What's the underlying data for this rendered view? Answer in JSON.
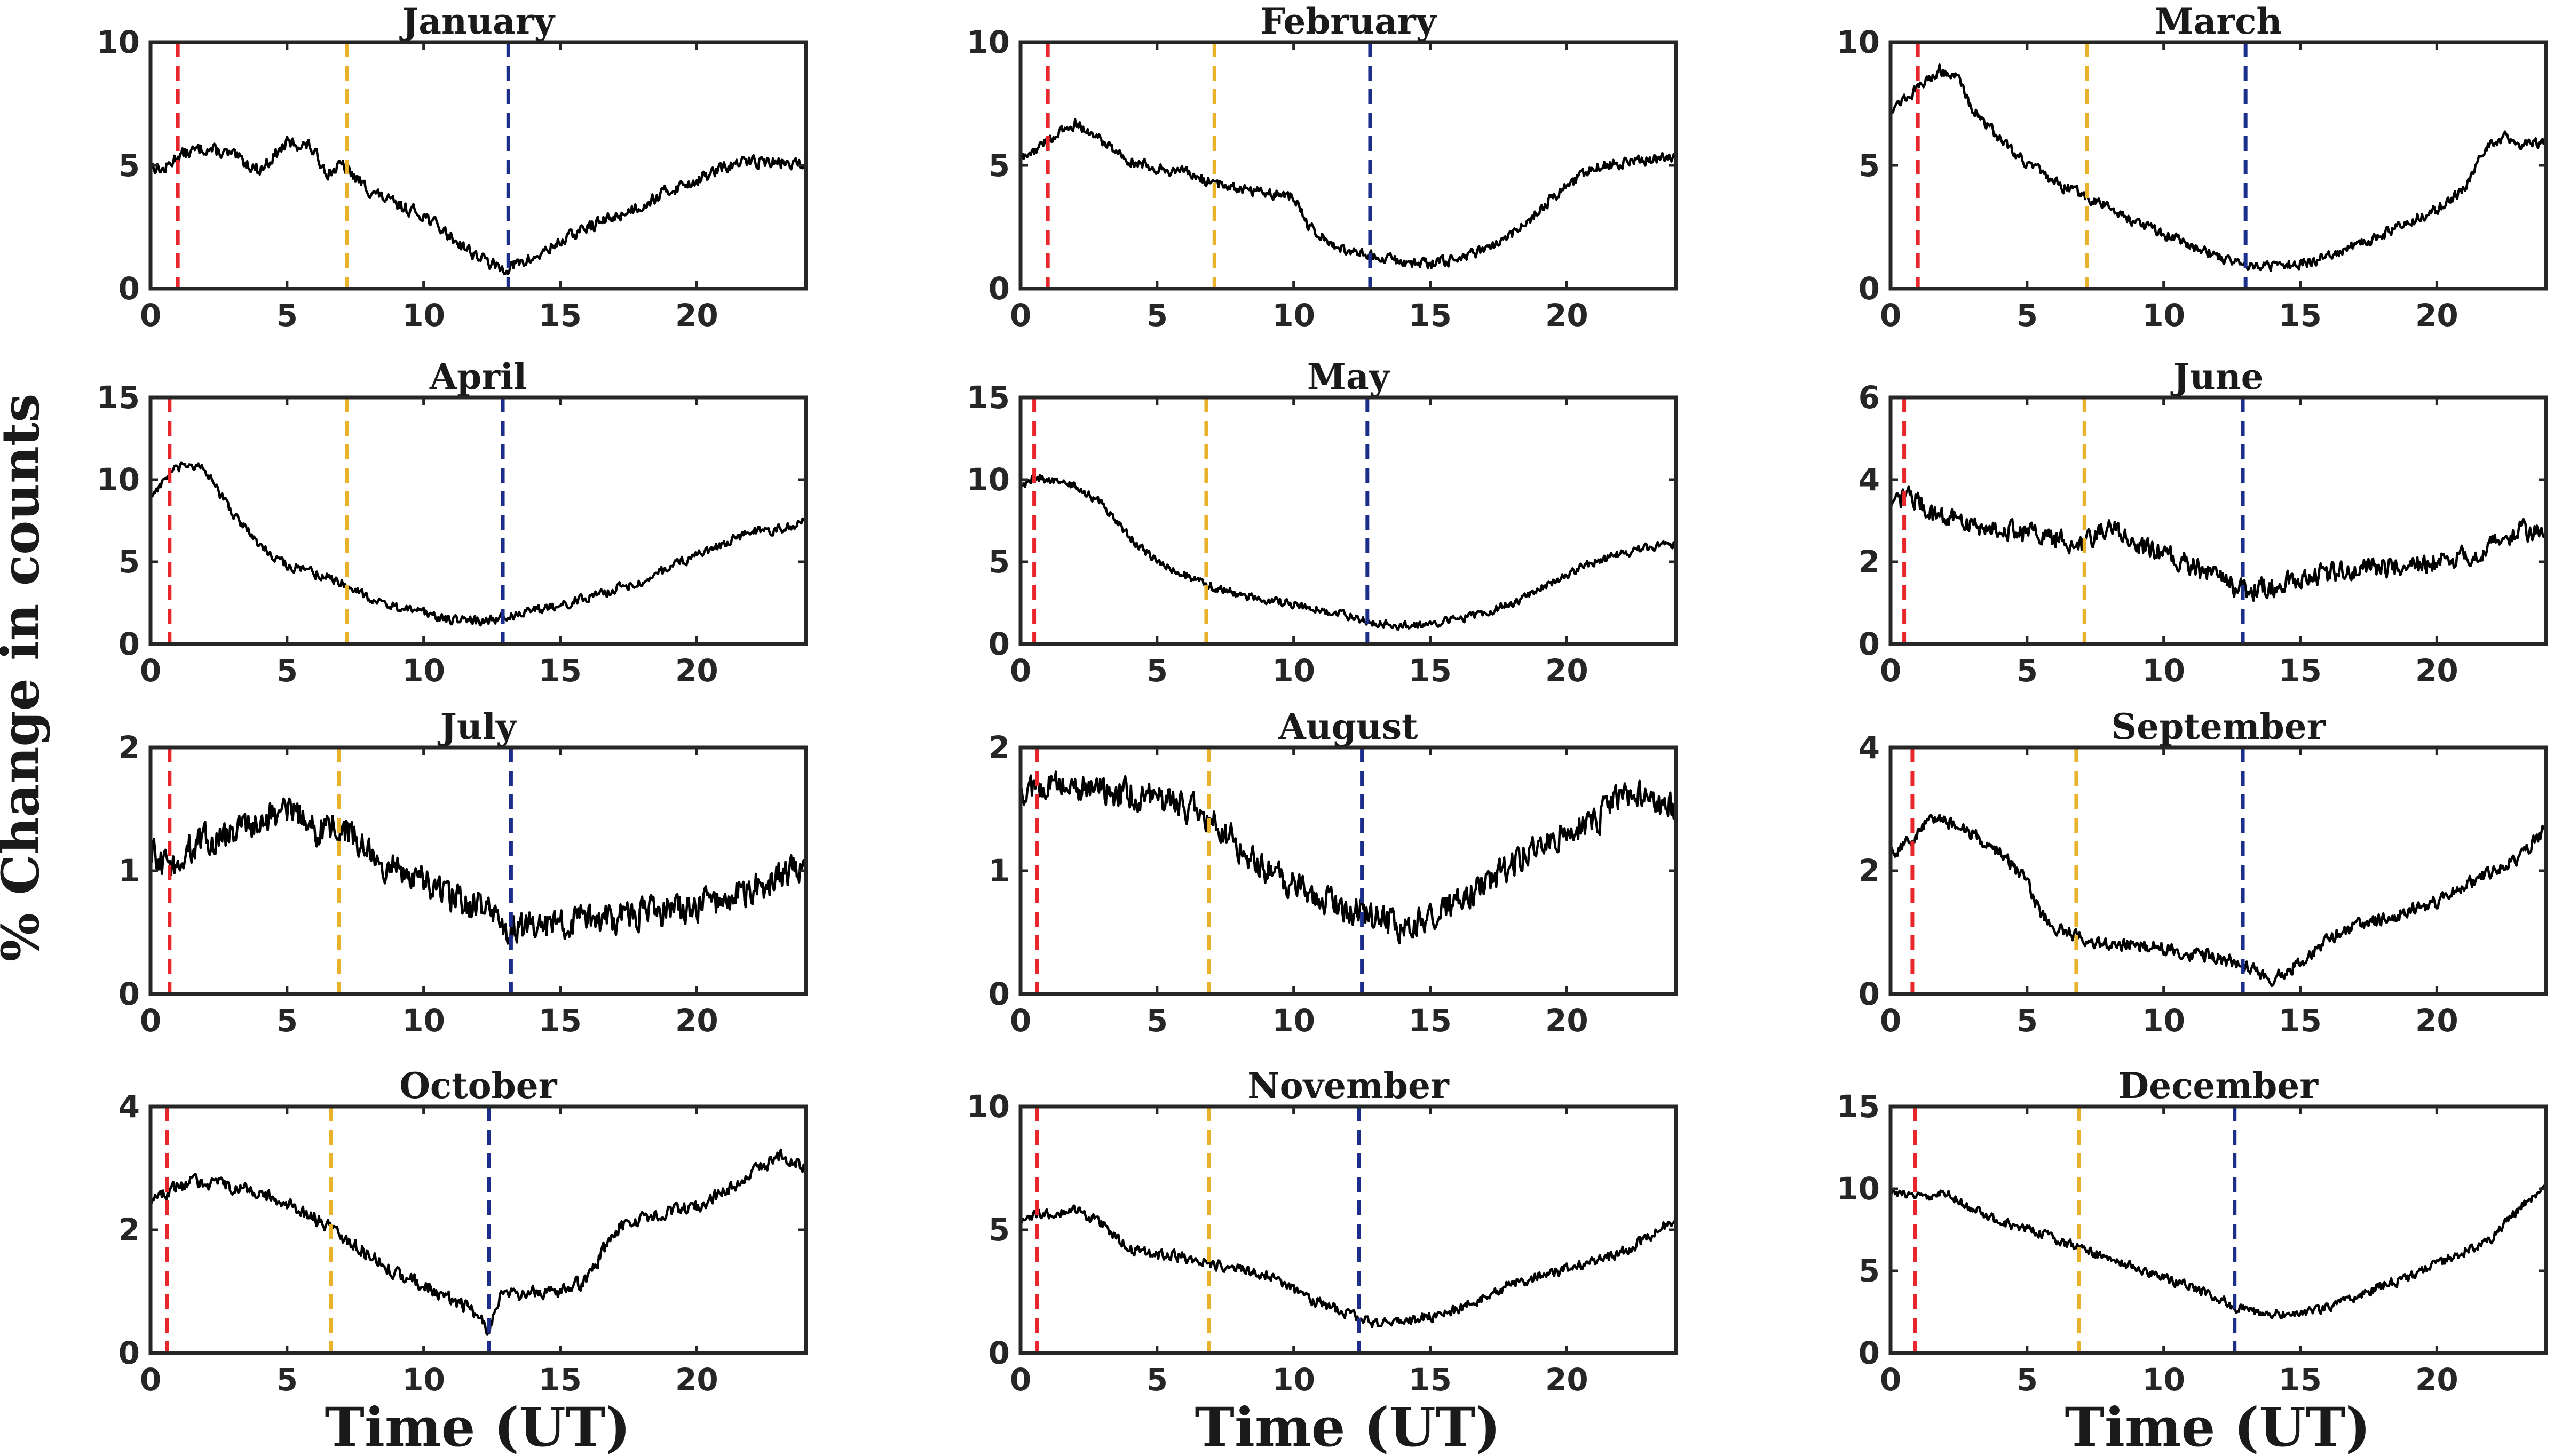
{
  "figure": {
    "ylabel": "% Change in counts",
    "xlabel": "Time (UT)"
  },
  "colors": {
    "line": "#000000",
    "red_marker": "#e8262c",
    "orange_marker": "#eab12a",
    "blue_marker": "#1a2e8a",
    "axis": "#262626"
  },
  "chart_data": [
    {
      "type": "line",
      "title": "January",
      "xlim": [
        0,
        24
      ],
      "ylim": [
        0,
        10
      ],
      "xticks": [
        0,
        5,
        10,
        15,
        20
      ],
      "yticks": [
        0,
        5,
        10
      ],
      "markers": [
        1.0,
        7.2,
        13.1
      ],
      "anchors": [
        [
          0,
          5
        ],
        [
          0.5,
          4.8
        ],
        [
          1,
          5.4
        ],
        [
          2,
          5.7
        ],
        [
          3,
          5.4
        ],
        [
          4,
          4.8
        ],
        [
          5,
          5.9
        ],
        [
          5.8,
          5.8
        ],
        [
          6.5,
          4.7
        ],
        [
          7,
          5
        ],
        [
          8,
          4
        ],
        [
          9,
          3.4
        ],
        [
          10,
          3
        ],
        [
          11,
          2.1
        ],
        [
          12,
          1.3
        ],
        [
          12.8,
          0.8
        ],
        [
          13.2,
          0.9
        ],
        [
          14,
          1.2
        ],
        [
          15,
          1.9
        ],
        [
          16,
          2.5
        ],
        [
          17,
          2.9
        ],
        [
          18,
          3.4
        ],
        [
          19,
          4
        ],
        [
          20,
          4.4
        ],
        [
          21,
          4.9
        ],
        [
          22,
          5.2
        ],
        [
          23,
          5.1
        ],
        [
          24,
          5
        ]
      ],
      "noise": 0.35
    },
    {
      "type": "line",
      "title": "February",
      "xlim": [
        0,
        24
      ],
      "ylim": [
        0,
        10
      ],
      "xticks": [
        0,
        5,
        10,
        15,
        20
      ],
      "yticks": [
        0,
        5,
        10
      ],
      "markers": [
        1.0,
        7.1,
        12.8
      ],
      "anchors": [
        [
          0,
          5.2
        ],
        [
          1,
          6
        ],
        [
          2,
          6.7
        ],
        [
          3,
          6
        ],
        [
          4,
          5.2
        ],
        [
          5,
          4.9
        ],
        [
          6,
          4.7
        ],
        [
          7,
          4.3
        ],
        [
          8,
          4.1
        ],
        [
          9,
          3.9
        ],
        [
          10,
          3.7
        ],
        [
          10.5,
          2.6
        ],
        [
          11,
          2.1
        ],
        [
          12,
          1.5
        ],
        [
          13,
          1.3
        ],
        [
          14,
          1.1
        ],
        [
          15,
          1
        ],
        [
          16,
          1.2
        ],
        [
          17,
          1.6
        ],
        [
          18,
          2.2
        ],
        [
          19,
          3.2
        ],
        [
          20,
          4.2
        ],
        [
          21,
          4.9
        ],
        [
          22,
          5.1
        ],
        [
          23,
          5.2
        ],
        [
          24,
          5.4
        ]
      ],
      "noise": 0.3
    },
    {
      "type": "line",
      "title": "March",
      "xlim": [
        0,
        24
      ],
      "ylim": [
        0,
        10
      ],
      "xticks": [
        0,
        5,
        10,
        15,
        20
      ],
      "yticks": [
        0,
        5,
        10
      ],
      "markers": [
        1.0,
        7.2,
        13.0
      ],
      "anchors": [
        [
          0,
          7.3
        ],
        [
          1,
          8.1
        ],
        [
          1.8,
          8.9
        ],
        [
          2.5,
          8.5
        ],
        [
          3,
          7.3
        ],
        [
          4,
          6.1
        ],
        [
          5,
          5.1
        ],
        [
          6,
          4.3
        ],
        [
          7,
          3.8
        ],
        [
          8,
          3.3
        ],
        [
          9,
          2.7
        ],
        [
          10,
          2.2
        ],
        [
          11,
          1.8
        ],
        [
          12,
          1.3
        ],
        [
          13,
          1
        ],
        [
          14,
          0.9
        ],
        [
          15,
          1
        ],
        [
          16,
          1.3
        ],
        [
          17,
          1.7
        ],
        [
          18,
          2.2
        ],
        [
          19,
          2.7
        ],
        [
          20,
          3.2
        ],
        [
          21,
          4
        ],
        [
          21.8,
          5.8
        ],
        [
          22.5,
          6.2
        ],
        [
          23,
          5.8
        ],
        [
          24,
          6
        ]
      ],
      "noise": 0.3
    },
    {
      "type": "line",
      "title": "April",
      "xlim": [
        0,
        24
      ],
      "ylim": [
        0,
        15
      ],
      "xticks": [
        0,
        5,
        10,
        15,
        20
      ],
      "yticks": [
        0,
        5,
        10,
        15
      ],
      "markers": [
        0.7,
        7.2,
        12.9
      ],
      "anchors": [
        [
          0,
          9
        ],
        [
          0.8,
          10.5
        ],
        [
          1.5,
          11
        ],
        [
          2,
          10.5
        ],
        [
          3,
          8
        ],
        [
          4,
          6
        ],
        [
          5,
          4.8
        ],
        [
          6,
          4.3
        ],
        [
          7,
          3.8
        ],
        [
          8,
          2.8
        ],
        [
          9,
          2.2
        ],
        [
          10,
          1.9
        ],
        [
          11,
          1.5
        ],
        [
          12,
          1.4
        ],
        [
          13,
          1.6
        ],
        [
          14,
          2
        ],
        [
          15,
          2.4
        ],
        [
          16,
          2.8
        ],
        [
          17,
          3.3
        ],
        [
          18,
          3.9
        ],
        [
          19,
          4.6
        ],
        [
          20,
          5.4
        ],
        [
          21,
          6.1
        ],
        [
          22,
          6.9
        ],
        [
          23,
          7
        ],
        [
          24,
          7.5
        ]
      ],
      "noise": 0.4
    },
    {
      "type": "line",
      "title": "May",
      "xlim": [
        0,
        24
      ],
      "ylim": [
        0,
        15
      ],
      "xticks": [
        0,
        5,
        10,
        15,
        20
      ],
      "yticks": [
        0,
        5,
        10,
        15
      ],
      "markers": [
        0.5,
        6.8,
        12.7
      ],
      "anchors": [
        [
          0,
          9.5
        ],
        [
          0.5,
          10.2
        ],
        [
          1.5,
          9.8
        ],
        [
          2,
          9.6
        ],
        [
          3,
          8.5
        ],
        [
          4,
          6.5
        ],
        [
          5,
          5
        ],
        [
          6,
          4.2
        ],
        [
          7,
          3.5
        ],
        [
          8,
          3
        ],
        [
          9,
          2.7
        ],
        [
          10,
          2.4
        ],
        [
          11,
          2.1
        ],
        [
          12,
          1.7
        ],
        [
          13,
          1.3
        ],
        [
          14,
          1.1
        ],
        [
          15,
          1.2
        ],
        [
          16,
          1.5
        ],
        [
          17,
          1.9
        ],
        [
          18,
          2.5
        ],
        [
          19,
          3.3
        ],
        [
          20,
          4.2
        ],
        [
          21,
          5
        ],
        [
          22,
          5.5
        ],
        [
          23,
          5.9
        ],
        [
          24,
          6.1
        ]
      ],
      "noise": 0.35
    },
    {
      "type": "line",
      "title": "June",
      "xlim": [
        0,
        24
      ],
      "ylim": [
        0,
        6
      ],
      "xticks": [
        0,
        5,
        10,
        15,
        20
      ],
      "yticks": [
        0,
        2,
        4,
        6
      ],
      "markers": [
        0.5,
        7.1,
        12.9
      ],
      "anchors": [
        [
          0,
          3.2
        ],
        [
          0.6,
          3.7
        ],
        [
          1.5,
          3.2
        ],
        [
          3,
          2.9
        ],
        [
          5,
          2.7
        ],
        [
          7,
          2.4
        ],
        [
          8,
          2.9
        ],
        [
          9,
          2.4
        ],
        [
          10,
          2.2
        ],
        [
          11,
          1.9
        ],
        [
          12,
          1.6
        ],
        [
          13,
          1.3
        ],
        [
          14,
          1.4
        ],
        [
          15,
          1.6
        ],
        [
          17,
          1.8
        ],
        [
          19,
          1.9
        ],
        [
          21,
          2.1
        ],
        [
          22,
          2.4
        ],
        [
          23,
          2.8
        ],
        [
          24,
          2.7
        ]
      ],
      "noise": 0.35
    },
    {
      "type": "line",
      "title": "July",
      "xlim": [
        0,
        24
      ],
      "ylim": [
        0,
        2
      ],
      "xticks": [
        0,
        5,
        10,
        15,
        20
      ],
      "yticks": [
        0,
        1,
        2
      ],
      "markers": [
        0.7,
        6.9,
        13.2
      ],
      "anchors": [
        [
          0,
          1.15
        ],
        [
          0.7,
          1.0
        ],
        [
          1.5,
          1.2
        ],
        [
          3,
          1.3
        ],
        [
          5,
          1.5
        ],
        [
          6,
          1.35
        ],
        [
          7,
          1.35
        ],
        [
          8,
          1.15
        ],
        [
          9,
          1.0
        ],
        [
          10,
          0.9
        ],
        [
          11,
          0.8
        ],
        [
          12,
          0.7
        ],
        [
          13,
          0.55
        ],
        [
          14,
          0.55
        ],
        [
          16,
          0.6
        ],
        [
          18,
          0.65
        ],
        [
          20,
          0.7
        ],
        [
          22,
          0.85
        ],
        [
          24,
          1.05
        ]
      ],
      "noise": 0.18
    },
    {
      "type": "line",
      "title": "August",
      "xlim": [
        0,
        24
      ],
      "ylim": [
        0,
        2
      ],
      "xticks": [
        0,
        5,
        10,
        15,
        20
      ],
      "yticks": [
        0,
        1,
        2
      ],
      "markers": [
        0.6,
        6.9,
        12.5
      ],
      "anchors": [
        [
          0,
          1.65
        ],
        [
          1,
          1.7
        ],
        [
          3,
          1.65
        ],
        [
          5,
          1.6
        ],
        [
          6.5,
          1.5
        ],
        [
          7.5,
          1.3
        ],
        [
          9,
          1.0
        ],
        [
          10,
          0.9
        ],
        [
          11,
          0.8
        ],
        [
          12,
          0.7
        ],
        [
          13,
          0.6
        ],
        [
          14,
          0.55
        ],
        [
          15,
          0.6
        ],
        [
          16,
          0.75
        ],
        [
          17,
          0.9
        ],
        [
          18,
          1.05
        ],
        [
          19,
          1.2
        ],
        [
          20,
          1.35
        ],
        [
          21,
          1.4
        ],
        [
          22,
          1.6
        ],
        [
          23,
          1.6
        ],
        [
          24,
          1.5
        ]
      ],
      "noise": 0.17
    },
    {
      "type": "line",
      "title": "September",
      "xlim": [
        0,
        24
      ],
      "ylim": [
        0,
        4
      ],
      "xticks": [
        0,
        5,
        10,
        15,
        20
      ],
      "yticks": [
        0,
        2,
        4
      ],
      "markers": [
        0.8,
        6.8,
        12.9
      ],
      "anchors": [
        [
          0,
          2.3
        ],
        [
          0.8,
          2.5
        ],
        [
          1.5,
          2.9
        ],
        [
          3,
          2.6
        ],
        [
          4,
          2.3
        ],
        [
          5,
          1.8
        ],
        [
          5.5,
          1.3
        ],
        [
          6,
          1.1
        ],
        [
          7,
          0.9
        ],
        [
          8,
          0.8
        ],
        [
          9,
          0.8
        ],
        [
          10,
          0.75
        ],
        [
          11,
          0.65
        ],
        [
          12,
          0.6
        ],
        [
          13,
          0.45
        ],
        [
          14,
          0.25
        ],
        [
          15,
          0.5
        ],
        [
          16,
          0.9
        ],
        [
          17,
          1.1
        ],
        [
          18,
          1.2
        ],
        [
          19,
          1.35
        ],
        [
          20,
          1.5
        ],
        [
          21,
          1.75
        ],
        [
          22,
          2.0
        ],
        [
          23,
          2.2
        ],
        [
          24,
          2.7
        ]
      ],
      "noise": 0.15
    },
    {
      "type": "line",
      "title": "October",
      "xlim": [
        0,
        24
      ],
      "ylim": [
        0,
        4
      ],
      "xticks": [
        0,
        5,
        10,
        15,
        20
      ],
      "yticks": [
        0,
        2,
        4
      ],
      "markers": [
        0.6,
        6.6,
        12.4
      ],
      "anchors": [
        [
          0,
          2.5
        ],
        [
          0.6,
          2.6
        ],
        [
          1.5,
          2.8
        ],
        [
          3,
          2.7
        ],
        [
          4,
          2.6
        ],
        [
          5,
          2.4
        ],
        [
          6,
          2.2
        ],
        [
          7,
          1.9
        ],
        [
          8,
          1.6
        ],
        [
          9,
          1.3
        ],
        [
          10,
          1.1
        ],
        [
          11,
          0.9
        ],
        [
          12,
          0.6
        ],
        [
          12.4,
          0.35
        ],
        [
          12.8,
          0.9
        ],
        [
          14,
          1.0
        ],
        [
          15,
          1.0
        ],
        [
          16,
          1.2
        ],
        [
          16.5,
          1.6
        ],
        [
          17,
          2.0
        ],
        [
          18,
          2.2
        ],
        [
          19,
          2.3
        ],
        [
          20,
          2.4
        ],
        [
          21,
          2.6
        ],
        [
          22,
          2.9
        ],
        [
          23,
          3.2
        ],
        [
          24,
          3.0
        ]
      ],
      "noise": 0.15
    },
    {
      "type": "line",
      "title": "November",
      "xlim": [
        0,
        24
      ],
      "ylim": [
        0,
        10
      ],
      "xticks": [
        0,
        5,
        10,
        15,
        20
      ],
      "yticks": [
        0,
        5,
        10
      ],
      "markers": [
        0.6,
        6.9,
        12.4
      ],
      "anchors": [
        [
          0,
          5.3
        ],
        [
          0.6,
          5.6
        ],
        [
          2,
          5.8
        ],
        [
          3,
          5.2
        ],
        [
          4,
          4.2
        ],
        [
          5,
          4.0
        ],
        [
          6,
          3.9
        ],
        [
          7,
          3.6
        ],
        [
          8,
          3.4
        ],
        [
          9,
          3.2
        ],
        [
          10,
          2.6
        ],
        [
          11,
          2.0
        ],
        [
          12,
          1.6
        ],
        [
          13,
          1.2
        ],
        [
          14,
          1.2
        ],
        [
          15,
          1.5
        ],
        [
          16,
          1.8
        ],
        [
          17,
          2.3
        ],
        [
          18,
          2.8
        ],
        [
          19,
          3.1
        ],
        [
          20,
          3.4
        ],
        [
          21,
          3.7
        ],
        [
          22,
          4.1
        ],
        [
          23,
          4.7
        ],
        [
          24,
          5.5
        ]
      ],
      "noise": 0.3
    },
    {
      "type": "line",
      "title": "December",
      "xlim": [
        0,
        24
      ],
      "ylim": [
        0,
        15
      ],
      "xticks": [
        0,
        5,
        10,
        15,
        20
      ],
      "yticks": [
        0,
        5,
        10,
        15
      ],
      "markers": [
        0.9,
        6.9,
        12.6
      ],
      "anchors": [
        [
          0,
          9.8
        ],
        [
          1,
          9.5
        ],
        [
          2,
          9.8
        ],
        [
          3,
          8.7
        ],
        [
          4,
          8.0
        ],
        [
          5,
          7.5
        ],
        [
          6,
          7.0
        ],
        [
          7,
          6.3
        ],
        [
          8,
          5.8
        ],
        [
          9,
          5.2
        ],
        [
          10,
          4.6
        ],
        [
          11,
          4.0
        ],
        [
          12,
          3.4
        ],
        [
          12.6,
          2.8
        ],
        [
          13,
          2.6
        ],
        [
          14,
          2.4
        ],
        [
          15,
          2.4
        ],
        [
          16,
          2.8
        ],
        [
          17,
          3.4
        ],
        [
          18,
          4.1
        ],
        [
          19,
          4.6
        ],
        [
          20,
          5.4
        ],
        [
          21,
          6.2
        ],
        [
          22,
          7.0
        ],
        [
          23,
          8.8
        ],
        [
          24,
          10.2
        ]
      ],
      "noise": 0.4
    }
  ]
}
